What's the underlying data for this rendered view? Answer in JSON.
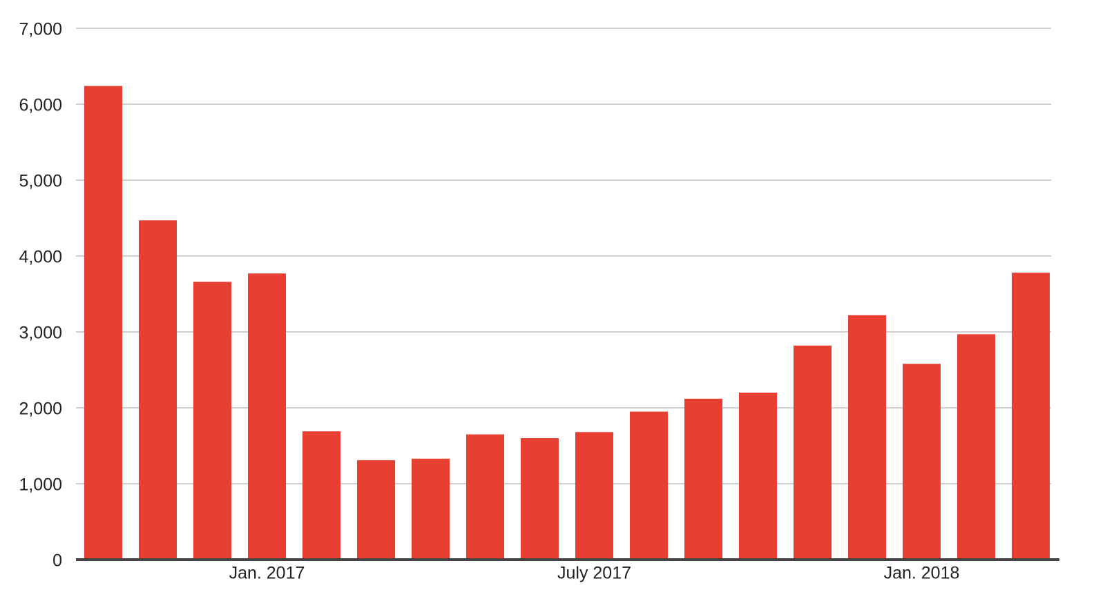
{
  "chart_data": {
    "type": "bar",
    "categories": [
      null,
      null,
      null,
      "Jan. 2017",
      null,
      null,
      null,
      null,
      null,
      "July 2017",
      null,
      null,
      null,
      null,
      null,
      "Jan. 2018",
      null,
      null
    ],
    "values": [
      6240,
      4470,
      3660,
      3770,
      1690,
      1310,
      1330,
      1650,
      1600,
      1680,
      1950,
      2120,
      2200,
      2820,
      3220,
      2580,
      2970,
      3780
    ],
    "color": "#e83f33",
    "ylim": [
      0,
      7000
    ],
    "yticks": [
      0,
      {
        "value": 1000,
        "label": "1,000"
      },
      {
        "value": 2000,
        "label": "2,000"
      },
      {
        "value": 3000,
        "label": "3,000"
      },
      {
        "value": 4000,
        "label": "4,000"
      },
      {
        "value": 5000,
        "label": "5,000"
      },
      {
        "value": 6000,
        "label": "6,000"
      },
      {
        "value": 7000,
        "label": "7,000"
      }
    ],
    "grid": true
  }
}
